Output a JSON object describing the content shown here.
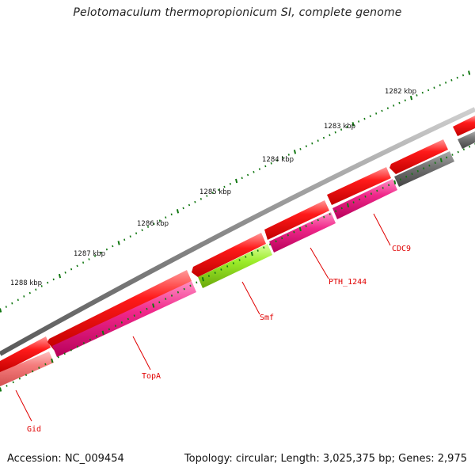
{
  "title": "Pelotomaculum thermopropionicum SI, complete genome",
  "footer": {
    "accession": "Accession: NC_009454",
    "topology": "Topology: circular; Length: 3,025,375 bp; Genes: 2,975"
  },
  "scale_labels": [
    "1282 kbp",
    "1283 kbp",
    "1284 kbp",
    "1285 kbp",
    "1286 kbp",
    "1287 kbp",
    "1288 kbp"
  ],
  "gene_labels": [
    "CDC9",
    "PTH_1244",
    "Smf",
    "TopA",
    "Gid"
  ],
  "colors": {
    "backbone": "#777777",
    "forward_gene": "#ee0000",
    "reverse_gene": "#e8207a",
    "smf_gene": "#99ee22",
    "gray_gene": "#666666",
    "gid_gene": "#f07070",
    "tick": "#117711",
    "label": "#e00000"
  }
}
